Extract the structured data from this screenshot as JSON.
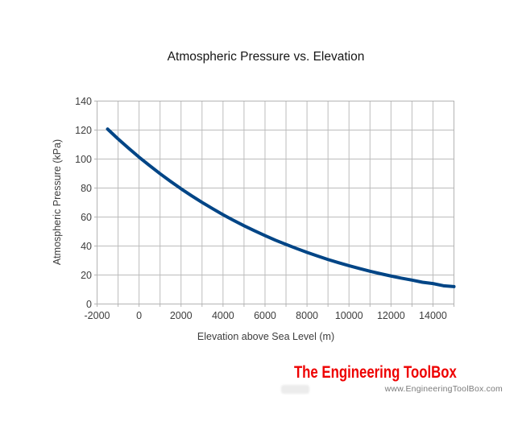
{
  "chart_data": {
    "type": "line",
    "title": "Atmospheric Pressure vs. Elevation",
    "xlabel": "Elevation above Sea Level (m)",
    "ylabel": "Atmospheric Pressure (kPa)",
    "xlim": [
      -2000,
      15000
    ],
    "ylim": [
      0,
      140
    ],
    "x_grid_step": 1000,
    "x_label_step": 2000,
    "y_tick_step": 20,
    "grid": true,
    "legend_position": "none",
    "x_tick_labels": [
      "-2000",
      "0",
      "2000",
      "4000",
      "6000",
      "8000",
      "10000",
      "12000",
      "14000"
    ],
    "y_tick_labels": [
      "0",
      "20",
      "40",
      "60",
      "80",
      "100",
      "120",
      "140"
    ],
    "series": [
      {
        "name": "Atmospheric pressure (kPa)",
        "color": "#004586",
        "points": [
          [
            -1500,
            120.7
          ],
          [
            -1000,
            113.9
          ],
          [
            -500,
            107.5
          ],
          [
            0,
            101.3
          ],
          [
            500,
            95.5
          ],
          [
            1000,
            89.9
          ],
          [
            1500,
            84.6
          ],
          [
            2000,
            79.5
          ],
          [
            2500,
            74.7
          ],
          [
            3000,
            70.1
          ],
          [
            3500,
            65.8
          ],
          [
            4000,
            61.6
          ],
          [
            4500,
            57.7
          ],
          [
            5000,
            54.0
          ],
          [
            5500,
            50.5
          ],
          [
            6000,
            47.2
          ],
          [
            6500,
            44.0
          ],
          [
            7000,
            41.1
          ],
          [
            7500,
            38.3
          ],
          [
            8000,
            35.6
          ],
          [
            8500,
            33.1
          ],
          [
            9000,
            30.7
          ],
          [
            9500,
            28.5
          ],
          [
            10000,
            26.4
          ],
          [
            10500,
            24.5
          ],
          [
            11000,
            22.6
          ],
          [
            11500,
            20.9
          ],
          [
            12000,
            19.3
          ],
          [
            12500,
            17.8
          ],
          [
            13000,
            16.5
          ],
          [
            13500,
            15.0
          ],
          [
            14000,
            14.1
          ],
          [
            14500,
            12.6
          ],
          [
            15000,
            12.0
          ]
        ]
      }
    ],
    "colors": {
      "grid": "#bcbcbc",
      "border": "#b3b3b3",
      "tick": "#b3b3b3",
      "tick_label": "#3d3d3d",
      "title": "#161616",
      "axis_title": "#3d3d3d"
    }
  },
  "branding": {
    "name": "The Engineering ToolBox",
    "url": "www.EngineeringToolBox.com",
    "name_color": "#ee0000",
    "url_color": "#7b7b7b"
  }
}
